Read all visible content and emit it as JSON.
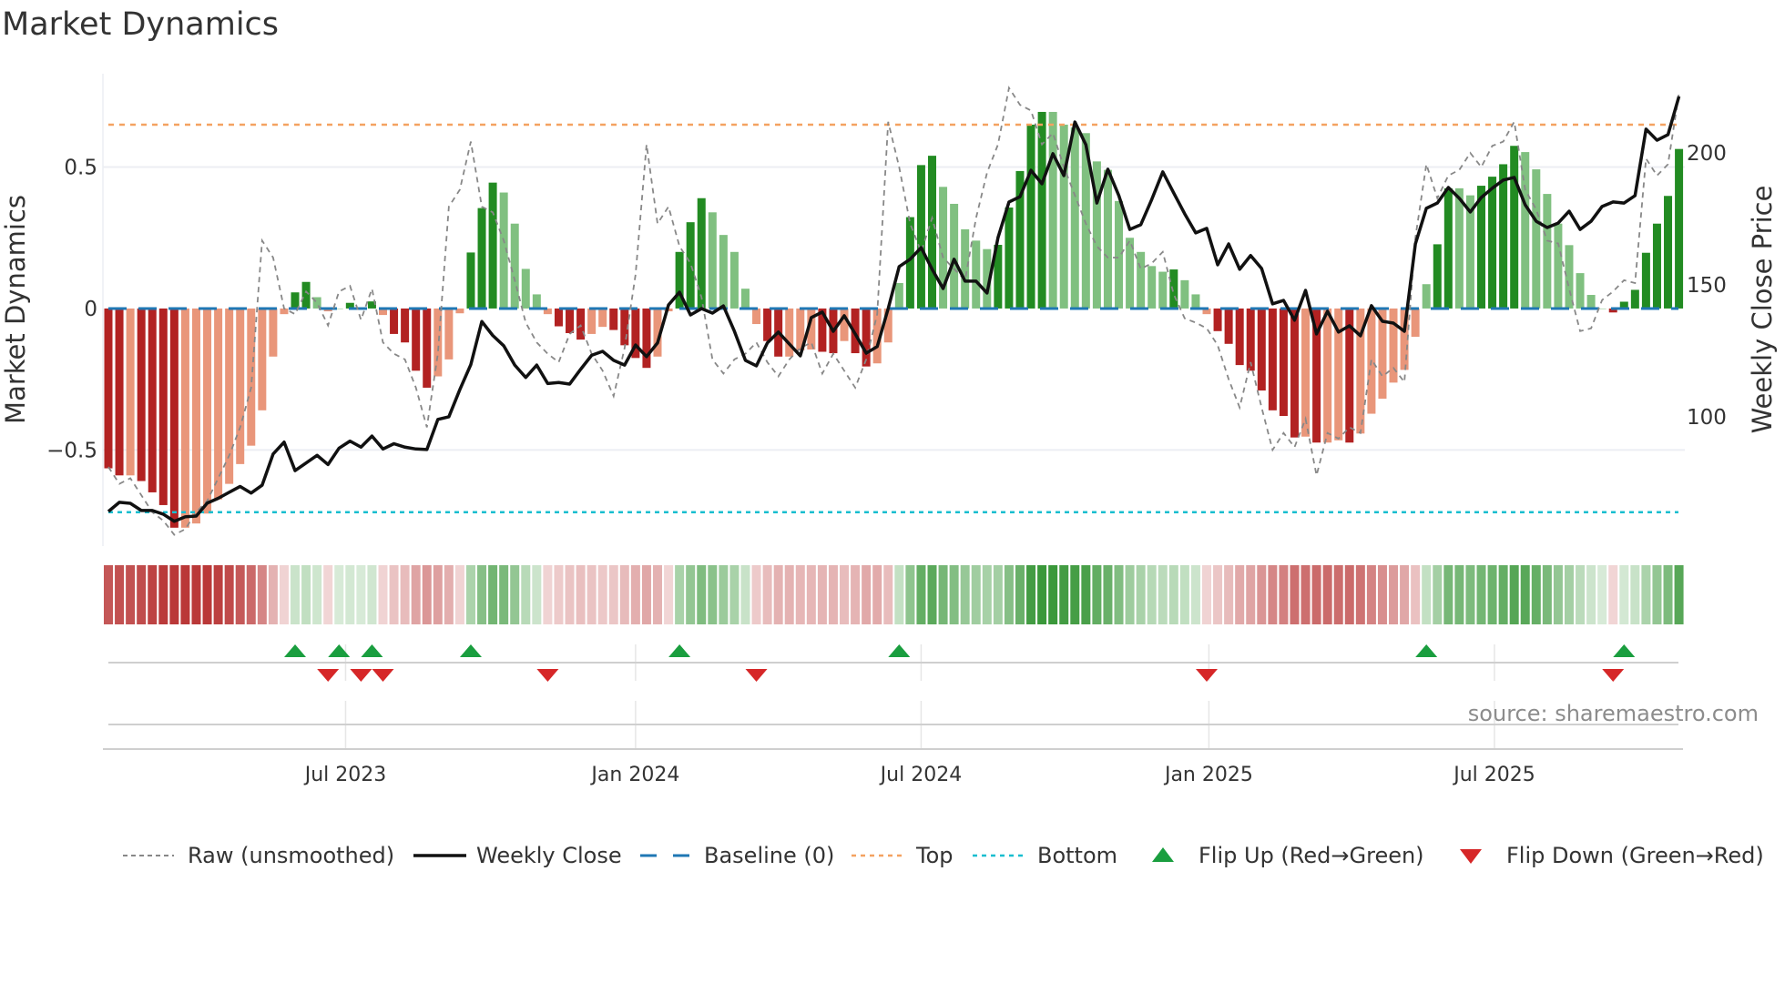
{
  "chart_data": {
    "type": "bar",
    "title": "Market Dynamics",
    "ylabel": "Market Dynamics",
    "y2label": "Weekly Close Price",
    "ylim": [
      -0.84,
      0.83
    ],
    "y2lim": [
      51,
      230
    ],
    "yticks": [
      {
        "value": 0.5,
        "label": "0.5"
      },
      {
        "value": 0,
        "label": "0"
      },
      {
        "value": -0.5,
        "label": "−0.5"
      }
    ],
    "y2ticks": [
      {
        "value": 200,
        "label": "200"
      },
      {
        "value": 150,
        "label": "150"
      },
      {
        "value": 100,
        "label": "100"
      }
    ],
    "x_ticks": [
      {
        "week": 22.6,
        "label": "Jul 2023"
      },
      {
        "week": 49.0,
        "label": "Jan 2024"
      },
      {
        "week": 75.0,
        "label": "Jul 2024"
      },
      {
        "week": 101.2,
        "label": "Jan 2025"
      },
      {
        "week": 127.2,
        "label": "Jul 2025"
      }
    ],
    "top_threshold": 0.65,
    "bottom_threshold": -0.72,
    "baseline": 0,
    "colors": {
      "pos_strong": "#228b22",
      "pos_weak": "#80c080",
      "neg_strong": "#b22222",
      "neg_weak": "#e9967a",
      "close": "#111111",
      "raw": "#888888",
      "baseline": "#1f77b4",
      "top": "#f4a261",
      "bottom": "#17becf",
      "flip_up": "#1a9e3f",
      "flip_down": "#d62728"
    },
    "dynamics": [
      -0.565,
      -0.59,
      -0.59,
      -0.61,
      -0.65,
      -0.695,
      -0.775,
      -0.775,
      -0.76,
      -0.725,
      -0.675,
      -0.62,
      -0.55,
      -0.485,
      -0.36,
      -0.17,
      -0.02,
      0.057,
      0.094,
      0.04,
      -0.01,
      0.0,
      0.02,
      0.0,
      0.025,
      -0.023,
      -0.09,
      -0.12,
      -0.22,
      -0.28,
      -0.24,
      -0.18,
      -0.017,
      0.198,
      0.355,
      0.445,
      0.41,
      0.3,
      0.14,
      0.05,
      -0.02,
      -0.063,
      -0.087,
      -0.11,
      -0.09,
      -0.065,
      -0.076,
      -0.13,
      -0.175,
      -0.21,
      -0.17,
      -0.01,
      0.2,
      0.305,
      0.39,
      0.34,
      0.26,
      0.2,
      0.07,
      -0.055,
      -0.115,
      -0.17,
      -0.17,
      -0.148,
      -0.145,
      -0.153,
      -0.158,
      -0.115,
      -0.158,
      -0.205,
      -0.194,
      -0.12,
      0.09,
      0.323,
      0.507,
      0.54,
      0.43,
      0.37,
      0.28,
      0.24,
      0.21,
      0.225,
      0.357,
      0.486,
      0.65,
      0.695,
      0.695,
      0.65,
      0.64,
      0.62,
      0.52,
      0.49,
      0.38,
      0.25,
      0.2,
      0.15,
      0.13,
      0.138,
      0.1,
      0.05,
      -0.02,
      -0.08,
      -0.125,
      -0.2,
      -0.22,
      -0.29,
      -0.36,
      -0.38,
      -0.456,
      -0.453,
      -0.474,
      -0.474,
      -0.466,
      -0.474,
      -0.442,
      -0.372,
      -0.319,
      -0.262,
      -0.217,
      -0.1,
      0.086,
      0.227,
      0.425,
      0.425,
      0.4,
      0.434,
      0.466,
      0.51,
      0.575,
      0.553,
      0.492,
      0.405,
      0.3,
      0.224,
      0.125,
      0.048,
      0.0,
      -0.014,
      0.024,
      0.066,
      0.197,
      0.3,
      0.398,
      0.564
    ],
    "raw": [
      -0.56,
      -0.62,
      -0.6,
      -0.66,
      -0.72,
      -0.75,
      -0.8,
      -0.78,
      -0.72,
      -0.68,
      -0.6,
      -0.52,
      -0.42,
      -0.28,
      0.24,
      0.18,
      0.0,
      -0.02,
      0.06,
      0.02,
      -0.06,
      0.06,
      0.08,
      -0.04,
      0.07,
      -0.12,
      -0.16,
      -0.18,
      -0.28,
      -0.42,
      -0.16,
      0.36,
      0.42,
      0.59,
      0.36,
      0.34,
      0.24,
      0.1,
      -0.05,
      -0.12,
      -0.16,
      -0.19,
      -0.09,
      -0.06,
      -0.16,
      -0.22,
      -0.31,
      -0.14,
      0.12,
      0.58,
      0.3,
      0.36,
      0.22,
      0.16,
      0.04,
      -0.18,
      -0.23,
      -0.18,
      -0.16,
      -0.12,
      -0.19,
      -0.24,
      -0.18,
      -0.14,
      -0.12,
      -0.23,
      -0.16,
      -0.22,
      -0.28,
      -0.18,
      -0.02,
      0.66,
      0.5,
      0.3,
      0.2,
      0.32,
      0.18,
      0.14,
      0.1,
      0.32,
      0.48,
      0.58,
      0.78,
      0.72,
      0.7,
      0.58,
      0.62,
      0.5,
      0.4,
      0.3,
      0.22,
      0.18,
      0.18,
      0.24,
      0.14,
      0.16,
      0.2,
      0.05,
      -0.035,
      -0.05,
      -0.07,
      -0.13,
      -0.25,
      -0.35,
      -0.19,
      -0.35,
      -0.5,
      -0.44,
      -0.49,
      -0.39,
      -0.59,
      -0.44,
      -0.46,
      -0.42,
      -0.44,
      -0.18,
      -0.24,
      -0.21,
      -0.26,
      0.25,
      0.51,
      0.39,
      0.47,
      0.49,
      0.55,
      0.5,
      0.575,
      0.59,
      0.66,
      0.42,
      0.35,
      0.24,
      0.23,
      0.07,
      -0.08,
      -0.07,
      0.03,
      0.06,
      0.1,
      0.09,
      0.53,
      0.47,
      0.51,
      0.76
    ],
    "weekly_close": [
      64.1,
      67.6,
      67.2,
      64.5,
      64.5,
      63.1,
      60.4,
      62.1,
      62.4,
      67.3,
      69.1,
      71.4,
      73.6,
      71.1,
      74.1,
      85.9,
      90.4,
      79.6,
      82.5,
      85.4,
      81.9,
      88.1,
      90.8,
      88.5,
      92.7,
      87.8,
      89.8,
      88.5,
      87.8,
      87.6,
      99.0,
      100,
      110.3,
      119.8,
      136.1,
      130.8,
      126.9,
      119.6,
      114.9,
      119.6,
      112.6,
      113,
      112.4,
      118,
      123.3,
      124.8,
      121.4,
      119.6,
      127.2,
      122.8,
      128,
      142.4,
      147.2,
      138.6,
      141,
      139.3,
      142,
      132.4,
      121.4,
      119.3,
      128,
      132.1,
      127.6,
      123.1,
      137.6,
      139.7,
      132.4,
      138.3,
      131.4,
      124.1,
      126.6,
      141,
      156.9,
      159.7,
      164.1,
      155.9,
      148.6,
      159.7,
      151.4,
      151.4,
      146.9,
      167.9,
      181.4,
      183.4,
      193.4,
      188.3,
      199.7,
      191.4,
      211.7,
      203.1,
      181,
      193.8,
      183.8,
      171,
      172.8,
      182.4,
      192.8,
      184.8,
      176.9,
      169.7,
      171.4,
      157.6,
      165.5,
      155.9,
      161.1,
      156.2,
      142.8,
      144.1,
      136.6,
      147.9,
      131.4,
      140,
      132.1,
      134.5,
      130.7,
      142.1,
      136.2,
      135.5,
      132.4,
      165.5,
      179,
      181,
      186.9,
      182.8,
      177.6,
      183.1,
      186.6,
      189.7,
      190.7,
      180.3,
      174.1,
      171.7,
      173.4,
      177.9,
      171,
      174.1,
      179.7,
      181.4,
      181,
      183.8,
      209,
      204.8,
      206.9,
      221.4
    ],
    "flip_up_weeks": [
      18,
      22,
      25,
      34,
      53,
      73,
      121,
      139
    ],
    "flip_down_weeks": [
      21,
      24,
      26,
      41,
      60,
      101,
      138
    ],
    "legend": [
      {
        "key": "raw",
        "label": "Raw (unsmoothed)"
      },
      {
        "key": "close",
        "label": "Weekly Close"
      },
      {
        "key": "baseline",
        "label": "Baseline (0)"
      },
      {
        "key": "top",
        "label": "Top"
      },
      {
        "key": "bottom",
        "label": "Bottom"
      },
      {
        "key": "flip_up",
        "label": "Flip Up (Red→Green)"
      },
      {
        "key": "flip_down",
        "label": "Flip Down (Green→Red)"
      }
    ],
    "legend_position": "bottom",
    "source": "source: sharemaestro.com"
  }
}
